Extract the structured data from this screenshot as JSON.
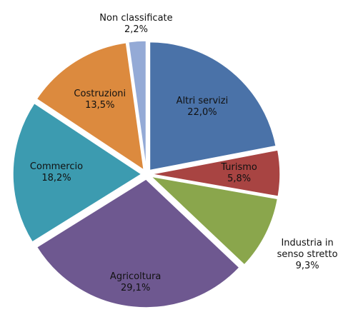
{
  "chart_data": {
    "type": "pie",
    "categories": [
      "Altri servizi",
      "Turismo",
      "Industria in senso stretto",
      "Agricoltura",
      "Commercio",
      "Costruzioni",
      "Non classificate"
    ],
    "values": [
      22.0,
      5.8,
      9.3,
      29.1,
      18.2,
      13.5,
      2.2
    ],
    "value_labels": [
      "22,0%",
      "5,8%",
      "9,3%",
      "29,1%",
      "18,2%",
      "13,5%",
      "2,2%"
    ],
    "colors": [
      "#4a72a8",
      "#a84442",
      "#8aa64c",
      "#6e5890",
      "#3c9bb0",
      "#dc8a3e",
      "#94aad6"
    ]
  }
}
